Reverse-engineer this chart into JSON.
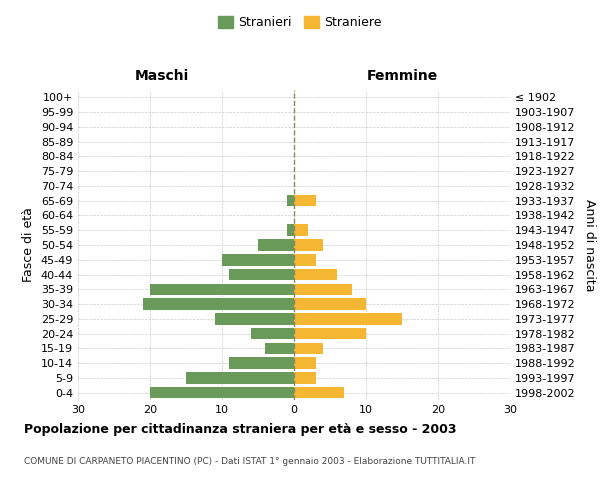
{
  "age_groups": [
    "0-4",
    "5-9",
    "10-14",
    "15-19",
    "20-24",
    "25-29",
    "30-34",
    "35-39",
    "40-44",
    "45-49",
    "50-54",
    "55-59",
    "60-64",
    "65-69",
    "70-74",
    "75-79",
    "80-84",
    "85-89",
    "90-94",
    "95-99",
    "100+"
  ],
  "birth_years": [
    "1998-2002",
    "1993-1997",
    "1988-1992",
    "1983-1987",
    "1978-1982",
    "1973-1977",
    "1968-1972",
    "1963-1967",
    "1958-1962",
    "1953-1957",
    "1948-1952",
    "1943-1947",
    "1938-1942",
    "1933-1937",
    "1928-1932",
    "1923-1927",
    "1918-1922",
    "1913-1917",
    "1908-1912",
    "1903-1907",
    "≤ 1902"
  ],
  "males": [
    20,
    15,
    9,
    4,
    6,
    11,
    21,
    20,
    9,
    10,
    5,
    1,
    0,
    1,
    0,
    0,
    0,
    0,
    0,
    0,
    0
  ],
  "females": [
    7,
    3,
    3,
    4,
    10,
    15,
    10,
    8,
    6,
    3,
    4,
    2,
    0,
    3,
    0,
    0,
    0,
    0,
    0,
    0,
    0
  ],
  "male_color": "#6a9a5a",
  "female_color": "#f5b731",
  "xlim": 30,
  "title": "Popolazione per cittadinanza straniera per età e sesso - 2003",
  "subtitle": "COMUNE DI CARPANETO PIACENTINO (PC) - Dati ISTAT 1° gennaio 2003 - Elaborazione TUTTITALIA.IT",
  "ylabel_left": "Fasce di età",
  "ylabel_right": "Anni di nascita",
  "xlabel_left": "Maschi",
  "xlabel_right": "Femmine",
  "legend_male": "Stranieri",
  "legend_female": "Straniere",
  "background_color": "#ffffff",
  "grid_color": "#cccccc"
}
